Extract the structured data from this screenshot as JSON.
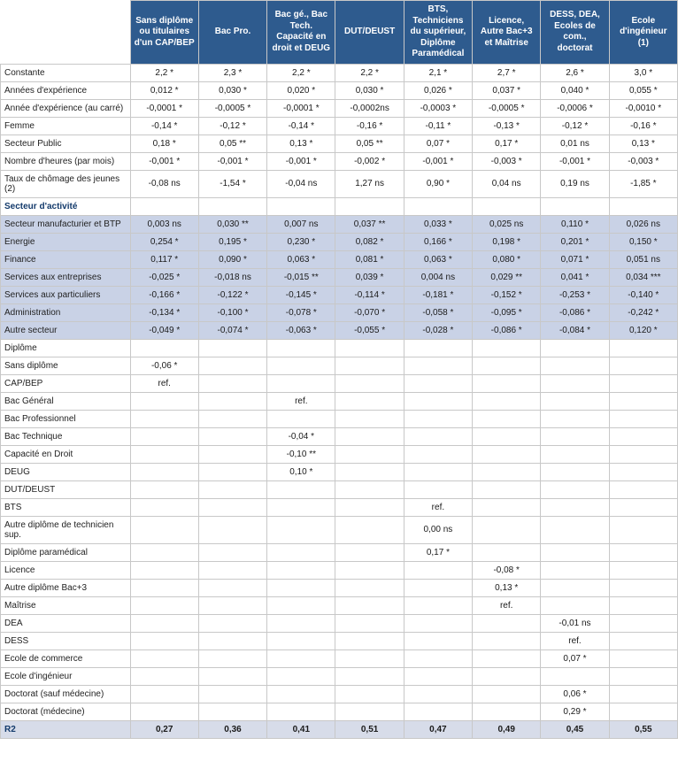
{
  "type": "table",
  "colors": {
    "header_bg": "#2e5b8e",
    "header_text": "#ffffff",
    "band_bg": "#c9d2e6",
    "r2_bg": "#d7dce9",
    "border": "#c8c8c8",
    "section_text": "#133a6b"
  },
  "columns": [
    "",
    "Sans diplôme ou titulaires d'un CAP/BEP",
    "Bac Pro.",
    "Bac gé., Bac Tech. Capacité en droit et DEUG",
    "DUT/DEUST",
    "BTS, Techniciens du supérieur, Diplôme Paramédical",
    "Licence, Autre Bac+3 et Maîtrise",
    "DESS, DEA, Ecoles de com., doctorat",
    "Ecole d'ingénieur (1)"
  ],
  "rows": [
    {
      "label": "Constante",
      "v": [
        "2,2 *",
        "2,3 *",
        "2,2 *",
        "2,2 *",
        "2,1 *",
        "2,7 *",
        "2,6 *",
        "3,0 *"
      ]
    },
    {
      "label": "Années d'expérience",
      "v": [
        "0,012 *",
        "0,030 *",
        "0,020 *",
        "0,030 *",
        "0,026 *",
        "0,037 *",
        "0,040 *",
        "0,055 *"
      ]
    },
    {
      "label": "Année d'expérience (au carré)",
      "v": [
        "-0,0001 *",
        "-0,0005 *",
        "-0,0001 *",
        "-0,0002ns",
        "-0,0003 *",
        "-0,0005 *",
        "-0,0006 *",
        "-0,0010 *"
      ]
    },
    {
      "label": "Femme",
      "v": [
        "-0,14 *",
        "-0,12 *",
        "-0,14 *",
        "-0,16 *",
        "-0,11 *",
        "-0,13 *",
        "-0,12 *",
        "-0,16 *"
      ]
    },
    {
      "label": "Secteur Public",
      "v": [
        "0,18 *",
        "0,05 **",
        "0,13 *",
        "0,05 **",
        "0,07 *",
        "0,17 *",
        "0,01 ns",
        "0,13 *"
      ]
    },
    {
      "label": "Nombre d'heures (par mois)",
      "v": [
        "-0,001 *",
        "-0,001 *",
        "-0,001 *",
        "-0,002 *",
        "-0,001 *",
        "-0,003 *",
        "-0,001 *",
        "-0,003 *"
      ]
    },
    {
      "label": "Taux de chômage des jeunes (2)",
      "v": [
        "-0,08 ns",
        "-1,54 *",
        "-0,04 ns",
        "1,27 ns",
        "0,90 *",
        "0,04 ns",
        "0,19 ns",
        "-1,85 *"
      ]
    },
    {
      "section": true,
      "label": "Secteur d'activité",
      "v": [
        "",
        "",
        "",
        "",
        "",
        "",
        "",
        ""
      ]
    },
    {
      "band": true,
      "label": "Secteur manufacturier et BTP",
      "v": [
        "0,003 ns",
        "0,030 **",
        "0,007 ns",
        "0,037 **",
        "0,033 *",
        "0,025 ns",
        "0,110 *",
        "0,026 ns"
      ]
    },
    {
      "band": true,
      "label": "Energie",
      "v": [
        "0,254 *",
        "0,195 *",
        "0,230 *",
        "0,082 *",
        "0,166 *",
        "0,198 *",
        "0,201 *",
        "0,150 *"
      ]
    },
    {
      "band": true,
      "label": "Finance",
      "v": [
        "0,117 *",
        "0,090 *",
        "0,063 *",
        "0,081 *",
        "0,063 *",
        "0,080 *",
        "0,071 *",
        "0,051 ns"
      ]
    },
    {
      "band": true,
      "label": "Services aux entreprises",
      "v": [
        "-0,025 *",
        "-0,018 ns",
        "-0,015 **",
        "0,039 *",
        "0,004 ns",
        "0,029  **",
        "0,041 *",
        "0,034 ***"
      ]
    },
    {
      "band": true,
      "label": "Services aux particuliers",
      "v": [
        "-0,166 *",
        "-0,122 *",
        "-0,145 *",
        "-0,114 *",
        "-0,181 *",
        "-0,152 *",
        "-0,253 *",
        "-0,140 *"
      ]
    },
    {
      "band": true,
      "label": "Administration",
      "v": [
        "-0,134 *",
        "-0,100 *",
        "-0,078 *",
        "-0,070 *",
        "-0,058 *",
        "-0,095 *",
        "-0,086 *",
        "-0,242 *"
      ]
    },
    {
      "band": true,
      "label": "Autre secteur",
      "v": [
        "-0,049 *",
        "-0,074 *",
        "-0,063 *",
        "-0,055 *",
        "-0,028 *",
        "-0,086 *",
        "-0,084 *",
        "0,120 *"
      ]
    },
    {
      "label": "Diplôme",
      "v": [
        "",
        "",
        "",
        "",
        "",
        "",
        "",
        ""
      ]
    },
    {
      "label": "Sans diplôme",
      "v": [
        "-0,06 *",
        "",
        "",
        "",
        "",
        "",
        "",
        ""
      ]
    },
    {
      "label": "CAP/BEP",
      "v": [
        "ref.",
        "",
        "",
        "",
        "",
        "",
        "",
        ""
      ]
    },
    {
      "label": "Bac Général",
      "v": [
        "",
        "",
        "ref.",
        "",
        "",
        "",
        "",
        ""
      ]
    },
    {
      "label": "Bac Professionnel",
      "v": [
        "",
        "",
        "",
        "",
        "",
        "",
        "",
        ""
      ]
    },
    {
      "label": "Bac Technique",
      "v": [
        "",
        "",
        "-0,04 *",
        "",
        "",
        "",
        "",
        ""
      ]
    },
    {
      "label": "Capacité en Droit",
      "v": [
        "",
        "",
        "-0,10 **",
        "",
        "",
        "",
        "",
        ""
      ]
    },
    {
      "label": "DEUG",
      "v": [
        "",
        "",
        "0,10 *",
        "",
        "",
        "",
        "",
        ""
      ]
    },
    {
      "label": "DUT/DEUST",
      "v": [
        "",
        "",
        "",
        "",
        "",
        "",
        "",
        ""
      ]
    },
    {
      "label": "BTS",
      "v": [
        "",
        "",
        "",
        "",
        "ref.",
        "",
        "",
        ""
      ]
    },
    {
      "label": "Autre diplôme de technicien sup.",
      "v": [
        "",
        "",
        "",
        "",
        "0,00 ns",
        "",
        "",
        ""
      ]
    },
    {
      "label": "Diplôme paramédical",
      "v": [
        "",
        "",
        "",
        "",
        "0,17 *",
        "",
        "",
        ""
      ]
    },
    {
      "label": "Licence",
      "v": [
        "",
        "",
        "",
        "",
        "",
        "-0,08 *",
        "",
        ""
      ]
    },
    {
      "label": "Autre diplôme Bac+3",
      "v": [
        "",
        "",
        "",
        "",
        "",
        "0,13 *",
        "",
        ""
      ]
    },
    {
      "label": "Maîtrise",
      "v": [
        "",
        "",
        "",
        "",
        "",
        "ref.",
        "",
        ""
      ]
    },
    {
      "label": "DEA",
      "v": [
        "",
        "",
        "",
        "",
        "",
        "",
        "-0,01 ns",
        ""
      ]
    },
    {
      "label": "DESS",
      "v": [
        "",
        "",
        "",
        "",
        "",
        "",
        "ref.",
        ""
      ]
    },
    {
      "label": "Ecole de commerce",
      "v": [
        "",
        "",
        "",
        "",
        "",
        "",
        "0,07 *",
        ""
      ]
    },
    {
      "label": "Ecole d'ingénieur",
      "v": [
        "",
        "",
        "",
        "",
        "",
        "",
        "",
        ""
      ]
    },
    {
      "label": "Doctorat (sauf médecine)",
      "v": [
        "",
        "",
        "",
        "",
        "",
        "",
        "0,06 *",
        ""
      ]
    },
    {
      "label": "Doctorat (médecine)",
      "v": [
        "",
        "",
        "",
        "",
        "",
        "",
        "0,29 *",
        ""
      ]
    },
    {
      "r2": true,
      "label": "R2",
      "v": [
        "0,27",
        "0,36",
        "0,41",
        "0,51",
        "0,47",
        "0,49",
        "0,45",
        "0,55"
      ]
    }
  ]
}
